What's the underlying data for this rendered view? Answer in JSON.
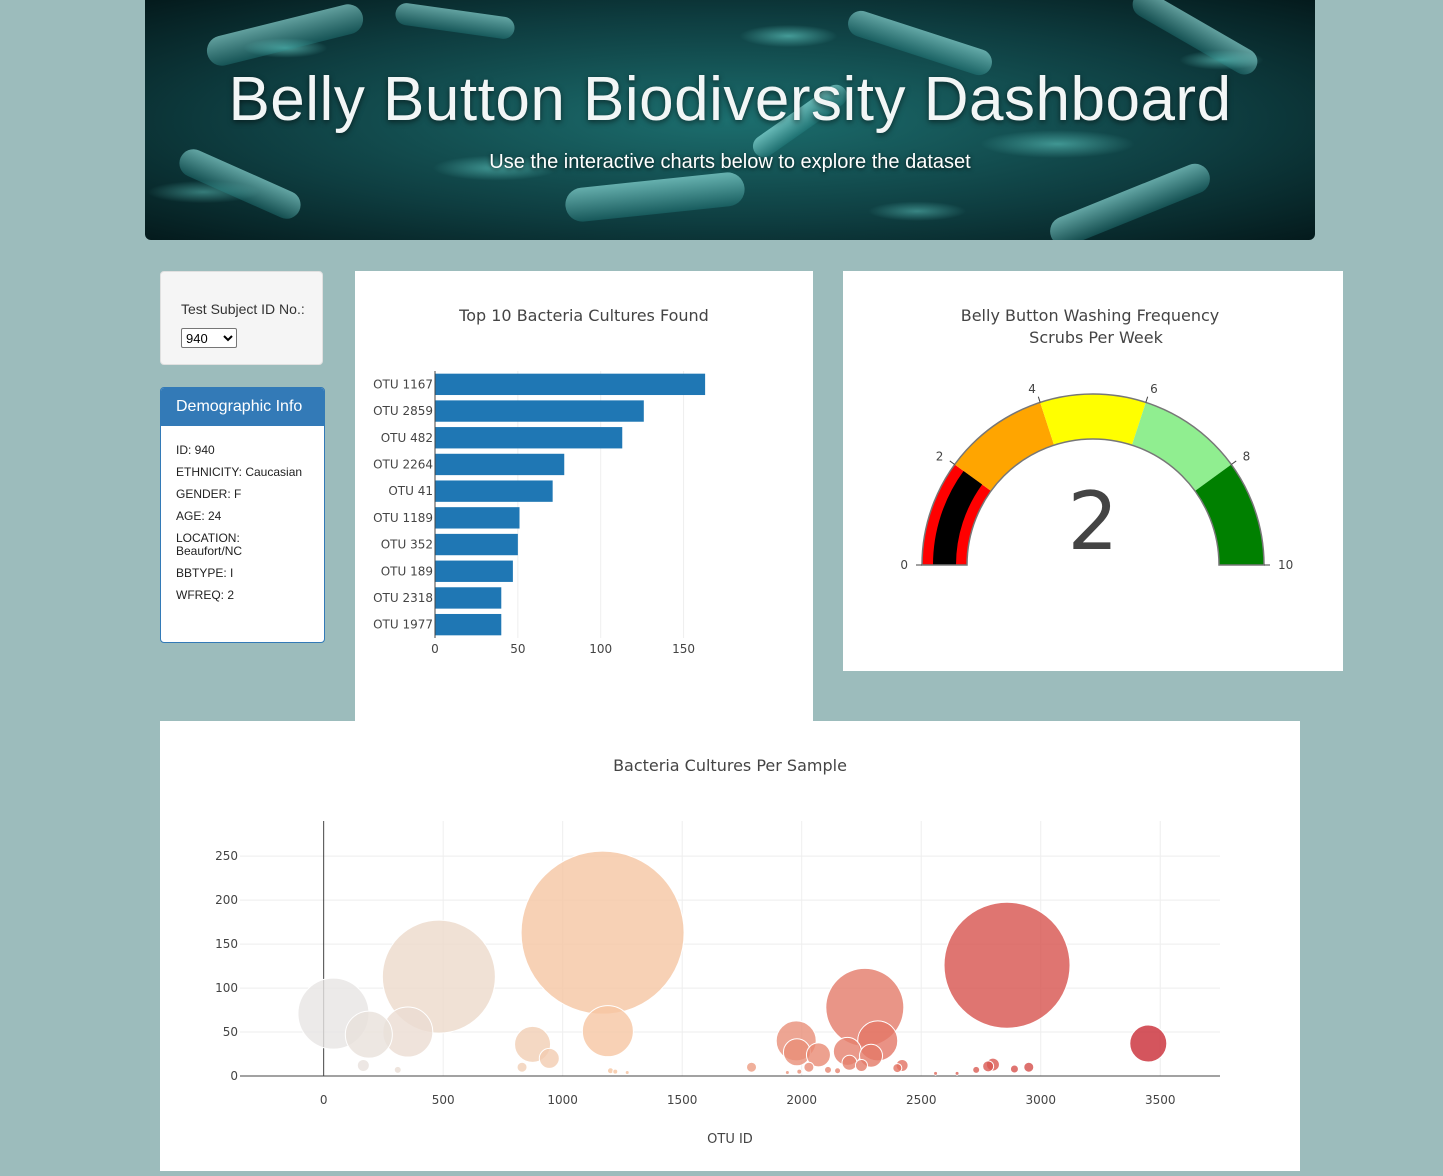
{
  "header": {
    "title": "Belly Button Biodiversity Dashboard",
    "subtitle": "Use the interactive charts below to explore the dataset"
  },
  "selector": {
    "label": "Test Subject ID No.:",
    "selected": "940"
  },
  "demographics": {
    "heading": "Demographic Info",
    "rows": [
      "ID: 940",
      "ETHNICITY: Caucasian",
      "GENDER: F",
      "AGE: 24",
      "LOCATION: Beaufort/NC",
      "BBTYPE: I",
      "WFREQ: 2"
    ]
  },
  "colors": {
    "page_bg": "#9cbcbc",
    "bar": "#1f77b4",
    "panel_primary": "#337ab7"
  },
  "chart_data": [
    {
      "type": "bar",
      "orientation": "horizontal",
      "title": "Top 10 Bacteria Cultures Found",
      "categories": [
        "OTU 1167",
        "OTU 2859",
        "OTU 482",
        "OTU 2264",
        "OTU 41",
        "OTU 1189",
        "OTU 352",
        "OTU 189",
        "OTU 2318",
        "OTU 1977"
      ],
      "values": [
        163,
        126,
        113,
        78,
        71,
        51,
        50,
        47,
        40,
        40
      ],
      "xlim": [
        0,
        175
      ],
      "xticks": [
        0,
        50,
        100,
        150
      ]
    },
    {
      "type": "gauge",
      "title_lines": [
        "Belly Button Washing Frequency",
        "Scrubs Per Week"
      ],
      "value": 2,
      "range": [
        0,
        10
      ],
      "ticks": [
        0,
        2,
        4,
        6,
        8,
        10
      ],
      "steps": [
        {
          "range": [
            0,
            2
          ],
          "color": "#ff0000"
        },
        {
          "range": [
            2,
            4
          ],
          "color": "#ffa500"
        },
        {
          "range": [
            4,
            6
          ],
          "color": "#ffff00"
        },
        {
          "range": [
            6,
            8
          ],
          "color": "#90ee90"
        },
        {
          "range": [
            8,
            10
          ],
          "color": "#008000"
        }
      ],
      "bar_color": "#000000"
    },
    {
      "type": "scatter",
      "title": "Bacteria Cultures Per Sample",
      "xlabel": "OTU ID",
      "xlim": [
        -350,
        3750
      ],
      "ylim": [
        0,
        290
      ],
      "xticks": [
        0,
        500,
        1000,
        1500,
        2000,
        2500,
        3000,
        3500
      ],
      "yticks": [
        0,
        50,
        100,
        150,
        200,
        250
      ],
      "points": [
        {
          "x": 41,
          "y": 71
        },
        {
          "x": 189,
          "y": 47
        },
        {
          "x": 352,
          "y": 50
        },
        {
          "x": 482,
          "y": 113
        },
        {
          "x": 1167,
          "y": 163
        },
        {
          "x": 1189,
          "y": 51
        },
        {
          "x": 874,
          "y": 36
        },
        {
          "x": 944,
          "y": 20
        },
        {
          "x": 166,
          "y": 12
        },
        {
          "x": 310,
          "y": 7
        },
        {
          "x": 830,
          "y": 10
        },
        {
          "x": 1977,
          "y": 40
        },
        {
          "x": 1980,
          "y": 27
        },
        {
          "x": 2070,
          "y": 24
        },
        {
          "x": 2191,
          "y": 28
        },
        {
          "x": 2264,
          "y": 78
        },
        {
          "x": 2318,
          "y": 40
        },
        {
          "x": 2290,
          "y": 23
        },
        {
          "x": 2200,
          "y": 15
        },
        {
          "x": 2250,
          "y": 12
        },
        {
          "x": 2030,
          "y": 10
        },
        {
          "x": 1790,
          "y": 10
        },
        {
          "x": 2420,
          "y": 12
        },
        {
          "x": 2400,
          "y": 9
        },
        {
          "x": 2859,
          "y": 126
        },
        {
          "x": 2800,
          "y": 13
        },
        {
          "x": 2780,
          "y": 11
        },
        {
          "x": 2950,
          "y": 10
        },
        {
          "x": 2890,
          "y": 8
        },
        {
          "x": 2730,
          "y": 7
        },
        {
          "x": 3450,
          "y": 37
        },
        {
          "x": 1200,
          "y": 6
        },
        {
          "x": 1220,
          "y": 5
        },
        {
          "x": 1270,
          "y": 4
        },
        {
          "x": 2110,
          "y": 7
        },
        {
          "x": 2150,
          "y": 6
        },
        {
          "x": 2560,
          "y": 3
        },
        {
          "x": 2650,
          "y": 3
        },
        {
          "x": 1990,
          "y": 5
        },
        {
          "x": 1940,
          "y": 4
        }
      ]
    }
  ]
}
